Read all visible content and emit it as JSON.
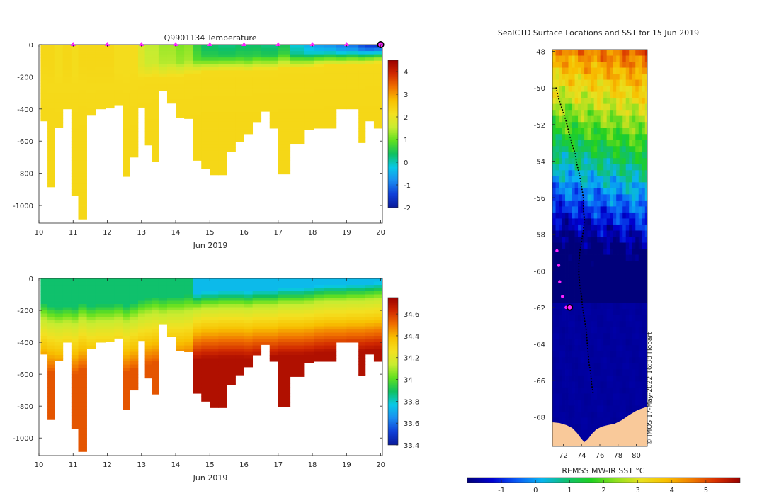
{
  "colors": {
    "temp_stops": [
      "#0a1a9a",
      "#1040d8",
      "#1a8cf0",
      "#08c8e8",
      "#10c060",
      "#60e020",
      "#c8ec30",
      "#f4e020",
      "#f8c000",
      "#f07000",
      "#d02800",
      "#9a0000"
    ],
    "sal_stops": [
      "#0a1a9a",
      "#1040d8",
      "#1a8cf0",
      "#08c8e8",
      "#10c060",
      "#60e020",
      "#c8ec30",
      "#f4e020",
      "#f8c000",
      "#f07000",
      "#d02800",
      "#9a0000"
    ],
    "sst_stops": [
      "#00007a",
      "#0000d0",
      "#0a5cf5",
      "#08b4f0",
      "#10c070",
      "#20d020",
      "#90e020",
      "#e8e020",
      "#f8c000",
      "#f08000",
      "#d83000",
      "#980000"
    ],
    "land": "#f9c99a",
    "profile_marker": "#ff22ff"
  },
  "chart_data": [
    {
      "type": "heatmap",
      "id": "temperature",
      "title": "Q9901134  Temperature",
      "xlabel": "Jun 2019",
      "ylabel": "",
      "xlim": [
        10,
        20.05
      ],
      "ylim": [
        -1110,
        0
      ],
      "x_ticks": [
        10,
        11,
        12,
        13,
        14,
        15,
        16,
        17,
        18,
        19,
        20
      ],
      "x_tick_labels": [
        "10",
        "11",
        "12",
        "13",
        "14",
        "15",
        "16",
        "17",
        "18",
        "19",
        "20"
      ],
      "y_ticks": [
        0,
        -200,
        -400,
        -600,
        -800,
        -1000
      ],
      "y_tick_labels": [
        "0",
        "-200",
        "-400",
        "-600",
        "-800",
        "-1000"
      ],
      "colorbar": {
        "range": [
          -2,
          4.5
        ],
        "ticks": [
          4,
          3,
          2,
          1,
          0,
          -1,
          -2
        ],
        "tick_labels": [
          "4",
          "3",
          "2",
          "1",
          "0",
          "-1",
          "-2"
        ]
      },
      "profile_markers_days": [
        11,
        12,
        13,
        14,
        15,
        16,
        17,
        18,
        19,
        20
      ],
      "last_marker_day": 20,
      "columns": [
        {
          "x0": 10.05,
          "x1": 10.25,
          "depth": 475,
          "surf": 2.3,
          "ml": 150
        },
        {
          "x0": 10.25,
          "x1": 10.45,
          "depth": 885,
          "surf": 2.3,
          "ml": 170
        },
        {
          "x0": 10.45,
          "x1": 10.7,
          "depth": 515,
          "surf": 2.2,
          "ml": 180
        },
        {
          "x0": 10.7,
          "x1": 10.95,
          "depth": 400,
          "surf": 2.3,
          "ml": 170
        },
        {
          "x0": 10.95,
          "x1": 11.15,
          "depth": 940,
          "surf": 2.2,
          "ml": 180
        },
        {
          "x0": 11.15,
          "x1": 11.4,
          "depth": 1085,
          "surf": 2.3,
          "ml": 150
        },
        {
          "x0": 11.4,
          "x1": 11.65,
          "depth": 440,
          "surf": 2.3,
          "ml": 170
        },
        {
          "x0": 11.65,
          "x1": 11.95,
          "depth": 400,
          "surf": 2.3,
          "ml": 160
        },
        {
          "x0": 11.95,
          "x1": 12.2,
          "depth": 395,
          "surf": 2.3,
          "ml": 160
        },
        {
          "x0": 12.2,
          "x1": 12.45,
          "depth": 375,
          "surf": 2.2,
          "ml": 150
        },
        {
          "x0": 12.45,
          "x1": 12.65,
          "depth": 820,
          "surf": 2.2,
          "ml": 170
        },
        {
          "x0": 12.65,
          "x1": 12.9,
          "depth": 700,
          "surf": 2.2,
          "ml": 150
        },
        {
          "x0": 12.9,
          "x1": 13.1,
          "depth": 390,
          "surf": 1.8,
          "ml": 130
        },
        {
          "x0": 13.1,
          "x1": 13.3,
          "depth": 625,
          "surf": 1.5,
          "ml": 120
        },
        {
          "x0": 13.3,
          "x1": 13.5,
          "depth": 725,
          "surf": 1.5,
          "ml": 110
        },
        {
          "x0": 13.5,
          "x1": 13.75,
          "depth": 285,
          "surf": 1.3,
          "ml": 120
        },
        {
          "x0": 13.75,
          "x1": 14.0,
          "depth": 365,
          "surf": 1.3,
          "ml": 110
        },
        {
          "x0": 14.0,
          "x1": 14.25,
          "depth": 455,
          "surf": 1.1,
          "ml": 110
        },
        {
          "x0": 14.25,
          "x1": 14.5,
          "depth": 460,
          "surf": 1.2,
          "ml": 100
        },
        {
          "x0": 14.5,
          "x1": 14.75,
          "depth": 720,
          "surf": 0.6,
          "ml": 90
        },
        {
          "x0": 14.75,
          "x1": 15.0,
          "depth": 770,
          "surf": 0.3,
          "ml": 80
        },
        {
          "x0": 15.0,
          "x1": 15.25,
          "depth": 810,
          "surf": 0.3,
          "ml": 80
        },
        {
          "x0": 15.25,
          "x1": 15.5,
          "depth": 810,
          "surf": 0.2,
          "ml": 75
        },
        {
          "x0": 15.5,
          "x1": 15.75,
          "depth": 665,
          "surf": 0.2,
          "ml": 75
        },
        {
          "x0": 15.75,
          "x1": 16.0,
          "depth": 605,
          "surf": 0.3,
          "ml": 75
        },
        {
          "x0": 16.0,
          "x1": 16.25,
          "depth": 555,
          "surf": 0.3,
          "ml": 80
        },
        {
          "x0": 16.25,
          "x1": 16.5,
          "depth": 480,
          "surf": 0.3,
          "ml": 70
        },
        {
          "x0": 16.5,
          "x1": 16.75,
          "depth": 415,
          "surf": 0.2,
          "ml": 70
        },
        {
          "x0": 16.75,
          "x1": 17.0,
          "depth": 520,
          "surf": 0.2,
          "ml": 70
        },
        {
          "x0": 17.0,
          "x1": 17.35,
          "depth": 805,
          "surf": 0.4,
          "ml": 60
        },
        {
          "x0": 17.35,
          "x1": 17.75,
          "depth": 615,
          "surf": -0.2,
          "ml": 60
        },
        {
          "x0": 17.75,
          "x1": 18.05,
          "depth": 530,
          "surf": -0.5,
          "ml": 55
        },
        {
          "x0": 18.05,
          "x1": 18.35,
          "depth": 520,
          "surf": -0.7,
          "ml": 45
        },
        {
          "x0": 18.35,
          "x1": 18.7,
          "depth": 520,
          "surf": -0.8,
          "ml": 40
        },
        {
          "x0": 18.7,
          "x1": 19.0,
          "depth": 400,
          "surf": -1.0,
          "ml": 40
        },
        {
          "x0": 19.0,
          "x1": 19.35,
          "depth": 400,
          "surf": -1.1,
          "ml": 35
        },
        {
          "x0": 19.35,
          "x1": 19.55,
          "depth": 610,
          "surf": -1.4,
          "ml": 35
        },
        {
          "x0": 19.55,
          "x1": 19.8,
          "depth": 475,
          "surf": -1.6,
          "ml": 30
        },
        {
          "x0": 19.8,
          "x1": 20.05,
          "depth": 520,
          "surf": -1.7,
          "ml": 25
        }
      ]
    },
    {
      "type": "heatmap",
      "id": "salinity",
      "title": "",
      "xlabel": "Jun 2019",
      "ylabel": "",
      "xlim": [
        10,
        20.05
      ],
      "ylim": [
        -1110,
        0
      ],
      "x_ticks": [
        10,
        11,
        12,
        13,
        14,
        15,
        16,
        17,
        18,
        19,
        20
      ],
      "x_tick_labels": [
        "10",
        "11",
        "12",
        "13",
        "14",
        "15",
        "16",
        "17",
        "18",
        "19",
        "20"
      ],
      "y_ticks": [
        0,
        -200,
        -400,
        -600,
        -800,
        -1000
      ],
      "y_tick_labels": [
        "0",
        "-200",
        "-400",
        "-600",
        "-800",
        "-1000"
      ],
      "colorbar": {
        "range": [
          33.4,
          34.75
        ],
        "ticks": [
          34.6,
          34.4,
          34.2,
          34.0,
          33.8,
          33.6,
          33.4
        ],
        "tick_labels": [
          "34.6",
          "34.4",
          "34.2",
          "34",
          "33.8",
          "33.6",
          "33.4"
        ]
      }
    },
    {
      "type": "heatmap",
      "id": "sst_map",
      "title": "SealCTD Surface Locations and SST for 15 Jun 2019",
      "xlabel": "",
      "ylabel": "",
      "xlim": [
        70.8,
        81.2
      ],
      "ylim": [
        -69.6,
        -47.9
      ],
      "x_ticks": [
        72,
        74,
        76,
        78,
        80
      ],
      "x_tick_labels": [
        "72",
        "74",
        "76",
        "78",
        "80"
      ],
      "y_ticks": [
        -48,
        -50,
        -52,
        -54,
        -56,
        -58,
        -60,
        -62,
        -64,
        -66,
        -68
      ],
      "y_tick_labels": [
        "-48",
        "-50",
        "-52",
        "-54",
        "-56",
        "-58",
        "-60",
        "-62",
        "-64",
        "-66",
        "-68"
      ],
      "colorbar": {
        "label": "REMSS MW-IR SST °C",
        "range": [
          -2,
          6
        ],
        "ticks": [
          -1,
          0,
          1,
          2,
          3,
          4,
          5
        ],
        "tick_labels": [
          "-1",
          "0",
          "1",
          "2",
          "3",
          "4",
          "5"
        ]
      },
      "track_lon": [
        71.2,
        71.5,
        71.9,
        72.3,
        72.6,
        72.9,
        73.3,
        73.5,
        73.8,
        74.0,
        74.2,
        74.2,
        74.3,
        74.2,
        74.0,
        73.8,
        73.7,
        73.7,
        73.8,
        74.0,
        74.1,
        74.3,
        74.5,
        74.6,
        74.7,
        74.8,
        75.0,
        75.1,
        75.3
      ],
      "track_lat": [
        -50.0,
        -50.6,
        -51.2,
        -51.8,
        -52.4,
        -53.0,
        -53.6,
        -54.2,
        -54.8,
        -55.4,
        -56.0,
        -56.6,
        -57.2,
        -57.8,
        -58.4,
        -59.0,
        -59.6,
        -60.2,
        -60.8,
        -61.4,
        -62.0,
        -62.6,
        -63.2,
        -63.8,
        -64.4,
        -65.0,
        -65.6,
        -66.2,
        -66.8
      ],
      "recent_lon": [
        71.3,
        71.5,
        71.6,
        71.9,
        72.3
      ],
      "recent_lat": [
        -58.9,
        -59.7,
        -60.6,
        -61.4,
        -62.0
      ],
      "current_lon": 72.7,
      "current_lat": -62.0
    }
  ],
  "credit": "© IMOS 17-May-2022 16:38 Hobart"
}
